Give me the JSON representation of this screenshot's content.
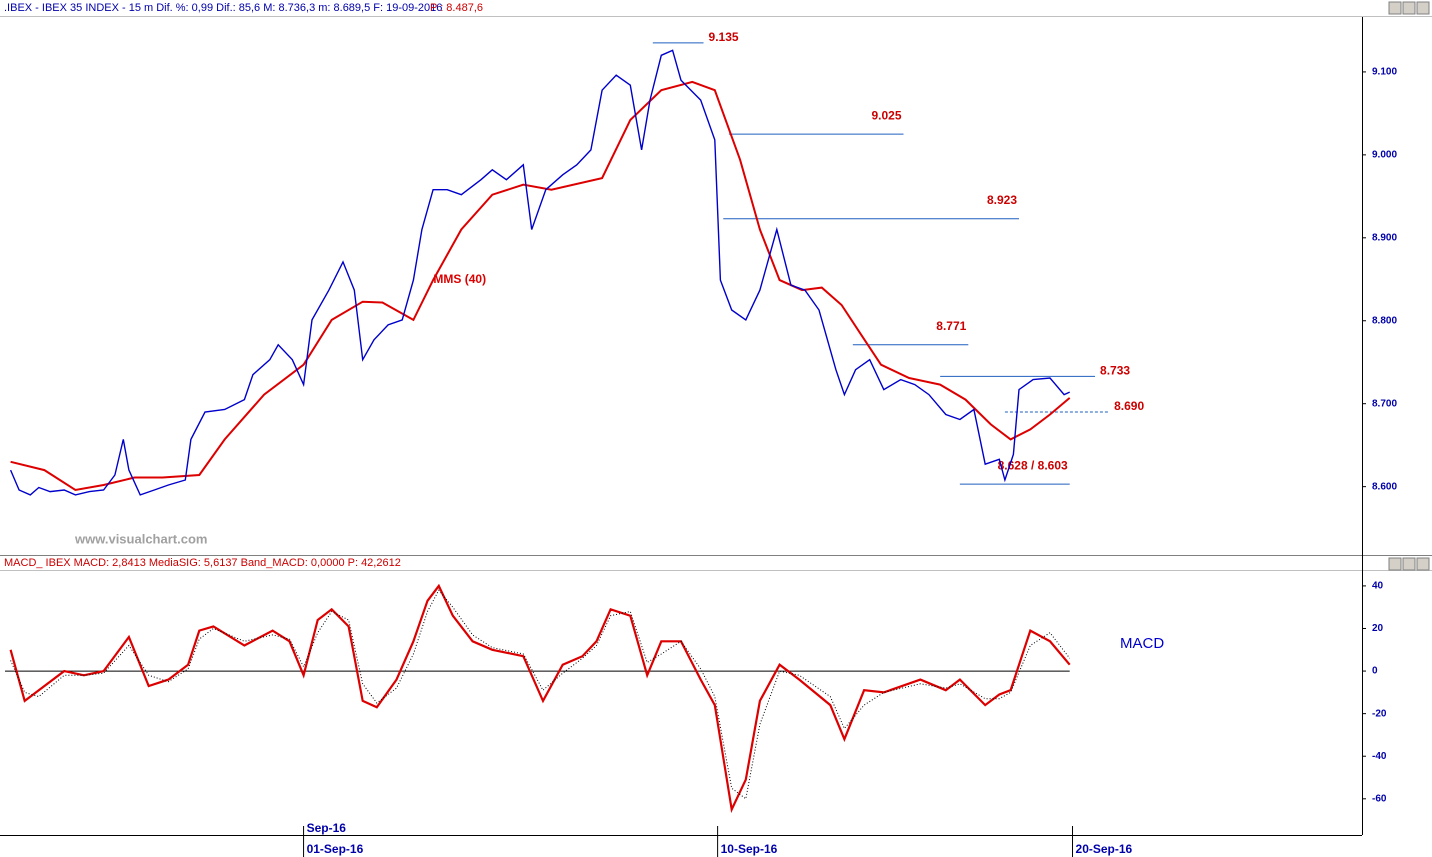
{
  "chart_data": [
    {
      "type": "line",
      "title": ".IBEX - IBEX 35 INDEX - 15 m  Dif. %: 0,99  Dif.: 85,6  M: 8.736,3  m: 8.689,5  F: 19-09-2016",
      "subtitle": "P : 8.487,6",
      "watermark": "www.visualchart.com",
      "x": [
        2,
        5,
        9,
        12,
        16,
        21,
        25,
        30,
        35,
        39,
        42,
        44,
        48,
        53,
        58,
        64,
        66,
        71,
        78,
        85,
        88,
        94,
        97,
        102,
        106,
        109,
        115,
        120,
        124,
        127,
        131,
        136,
        141,
        145,
        148,
        152,
        157,
        162,
        169,
        173,
        178,
        184,
        187,
        192,
        198,
        203,
        208,
        212,
        217,
        222,
        226,
        229,
        233,
        237,
        240,
        247,
        252,
        254,
        258,
        263,
        268,
        274,
        279,
        284,
        289,
        295,
        298,
        302,
        307,
        312,
        318,
        323,
        328,
        334,
        339,
        344,
        348,
        353,
        355,
        358,
        360,
        365,
        371,
        376,
        378
      ],
      "series": [
        {
          "color": "#0000cc",
          "values": [
            8620,
            8596,
            8590,
            8599,
            8594,
            8596,
            8590,
            8594,
            8596,
            8614,
            8657,
            8620,
            8590,
            8596,
            8602,
            8608,
            8657,
            8690,
            8693,
            8705,
            8735,
            8753,
            8771,
            8753,
            8723,
            8801,
            8837,
            8871,
            8837,
            8753,
            8777,
            8795,
            8801,
            8849,
            8910,
            8958,
            8958,
            8952,
            8970,
            8982,
            8970,
            8988,
            8910,
            8958,
            8976,
            8988,
            9006,
            9078,
            9096,
            9084,
            9006,
            9066,
            9120,
            9126,
            9090,
            9066,
            9018,
            8849,
            8813,
            8801,
            8837,
            8910,
            8843,
            8837,
            8813,
            8741,
            8711,
            8741,
            8753,
            8717,
            8729,
            8723,
            8711,
            8687,
            8681,
            8693,
            8627,
            8633,
            8608,
            8639,
            8717,
            8729,
            8731,
            8711,
            8714
          ]
        }
      ],
      "average": {
        "name": "MMS (40)",
        "color": "#dd0000",
        "x": [
          2,
          14,
          25,
          35,
          46,
          56,
          69,
          78,
          92,
          106,
          116,
          127,
          134,
          145,
          152,
          162,
          173,
          184,
          194,
          212,
          222,
          233,
          244,
          252,
          261,
          268,
          275,
          283,
          290,
          297,
          304,
          311,
          321,
          332,
          341,
          350,
          357,
          364,
          371,
          378
        ],
        "values": [
          8630,
          8620,
          8596,
          8602,
          8611,
          8611,
          8614,
          8657,
          8711,
          8747,
          8801,
          8823,
          8822,
          8801,
          8849,
          8910,
          8952,
          8964,
          8958,
          8972,
          9042,
          9078,
          9088,
          9078,
          8994,
          8910,
          8849,
          8837,
          8840,
          8819,
          8783,
          8747,
          8731,
          8723,
          8705,
          8675,
          8657,
          8669,
          8687,
          8707
        ]
      },
      "levels": [
        {
          "value": 9135,
          "label": "9.135",
          "x": [
            230,
            248
          ]
        },
        {
          "value": 9025,
          "label": "9.025",
          "x": [
            257,
            319
          ]
        },
        {
          "value": 8923,
          "label": "8.923",
          "x": [
            255,
            360
          ]
        },
        {
          "value": 8771,
          "label": "8.771",
          "x": [
            301,
            342
          ]
        },
        {
          "value": 8733,
          "label": "8.733",
          "x": [
            332,
            387
          ]
        },
        {
          "value": 8690,
          "label": "8.690",
          "x": [
            355,
            392
          ],
          "dashed": true
        },
        {
          "value": 8603,
          "label": "8.628 / 8.603",
          "x": [
            339,
            378
          ]
        }
      ],
      "xlim": [
        0,
        480
      ],
      "ylim": [
        8520,
        9165
      ],
      "yticks": [
        {
          "value": 8600,
          "label": "8.600"
        },
        {
          "value": 8700,
          "label": "8.700"
        },
        {
          "value": 8800,
          "label": "8.800"
        },
        {
          "value": 8900,
          "label": "8.900"
        },
        {
          "value": 9000,
          "label": "9.000"
        },
        {
          "value": 9100,
          "label": "9.100"
        }
      ]
    },
    {
      "type": "line",
      "title": "MACD_ IBEX MACD: 2,8413  MediaSIG: 5,6137  Band_MACD: 0,0000  P: 42,2612",
      "x": [
        2,
        7,
        12,
        21,
        28,
        35,
        44,
        51,
        58,
        65,
        69,
        74,
        85,
        95,
        101,
        106,
        111,
        116,
        122,
        127,
        132,
        139,
        145,
        150,
        154,
        159,
        166,
        173,
        184,
        191,
        198,
        205,
        210,
        215,
        222,
        228,
        233,
        240,
        247,
        252,
        258,
        263,
        268,
        275,
        282,
        293,
        298,
        305,
        312,
        325,
        334,
        339,
        348,
        353,
        357,
        364,
        371,
        378
      ],
      "series": [
        {
          "name": "MACD",
          "color": "#dd0000",
          "values": [
            10,
            -14,
            -9,
            0,
            -2,
            0,
            16,
            -7,
            -4,
            3,
            19,
            21,
            12,
            19,
            14,
            -2,
            24,
            29,
            21,
            -14,
            -17,
            -4,
            14,
            33,
            40,
            26,
            14,
            10,
            7,
            -14,
            3,
            7,
            14,
            29,
            26,
            -2,
            14,
            14,
            -4,
            -16,
            -65,
            -51,
            -14,
            3,
            -4,
            -16,
            -32,
            -9,
            -10,
            -4,
            -9,
            -4,
            -16,
            -11,
            -9,
            19,
            14,
            3
          ]
        },
        {
          "color": "#000000",
          "values": [
            5,
            -10,
            -12,
            -2,
            -2,
            -1,
            12,
            -2,
            -5,
            1,
            15,
            20,
            14,
            17,
            15,
            2,
            18,
            28,
            24,
            -6,
            -15,
            -8,
            8,
            28,
            38,
            30,
            17,
            11,
            8,
            -9,
            -1,
            6,
            12,
            26,
            28,
            4,
            8,
            14,
            1,
            -12,
            -55,
            -60,
            -25,
            0,
            -2,
            -12,
            -27,
            -16,
            -10,
            -6,
            -8,
            -6,
            -13,
            -13,
            -10,
            12,
            18,
            6
          ]
        }
      ],
      "band": 0,
      "xlim": [
        0,
        480
      ],
      "ylim": [
        -77,
        47
      ],
      "yticks": [
        40,
        20,
        0,
        -20,
        -40,
        -60
      ],
      "month_label": "Sep-16",
      "xticks": [
        {
          "value": 106,
          "label": "01-Sep-16"
        },
        {
          "value": 253,
          "label": "10-Sep-16"
        },
        {
          "value": 379,
          "label": "20-Sep-16"
        }
      ]
    }
  ]
}
